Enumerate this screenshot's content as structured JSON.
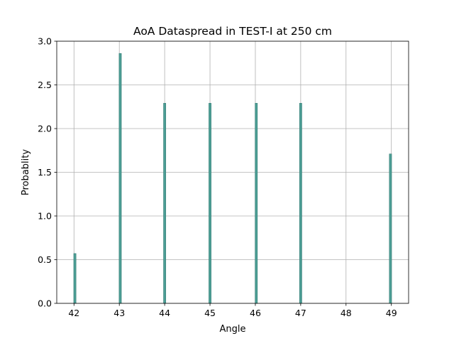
{
  "chart_data": {
    "type": "bar",
    "title": "AoA Dataspread in TEST-I at 250 cm",
    "xlabel": "Angle",
    "ylabel": "Probablity",
    "xlim": [
      41.62,
      49.38
    ],
    "ylim": [
      0,
      3.0
    ],
    "x_ticks": [
      42,
      43,
      44,
      45,
      46,
      47,
      48,
      49
    ],
    "y_ticks": [
      0.0,
      0.5,
      1.0,
      1.5,
      2.0,
      2.5,
      3.0
    ],
    "grid": true,
    "bar_width": 0.05,
    "bar_color": "#4c9e95",
    "bar_edge_color": "#3a7f78",
    "bars": [
      {
        "x": 42.02,
        "value": 0.57
      },
      {
        "x": 43.02,
        "value": 2.86
      },
      {
        "x": 44.0,
        "value": 2.29
      },
      {
        "x": 45.0,
        "value": 2.29
      },
      {
        "x": 46.02,
        "value": 2.29
      },
      {
        "x": 47.0,
        "value": 2.29
      },
      {
        "x": 48.98,
        "value": 1.71
      }
    ]
  }
}
